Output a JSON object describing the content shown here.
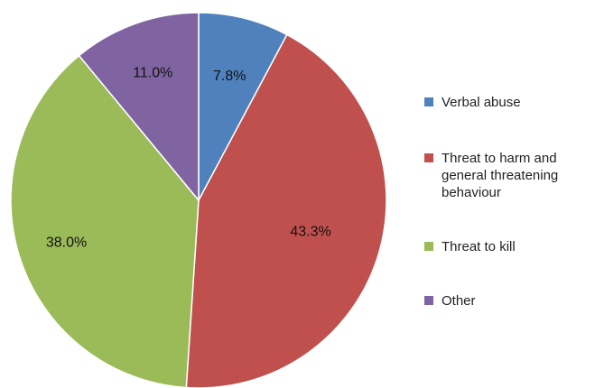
{
  "chart_data": {
    "type": "pie",
    "title": "",
    "slices": [
      {
        "label": "Verbal abuse",
        "value": 7.8,
        "display": "7.8%",
        "color": "#4f81bd"
      },
      {
        "label": "Threat to harm and general threatening behaviour",
        "value": 43.3,
        "display": "43.3%",
        "color": "#c0504d"
      },
      {
        "label": "Threat to kill",
        "value": 38.0,
        "display": "38.0%",
        "color": "#9bbb59"
      },
      {
        "label": "Other",
        "value": 11.0,
        "display": "11.0%",
        "color": "#8064a2"
      }
    ],
    "legend": {
      "position": "right",
      "items": [
        "Verbal abuse",
        "Threat to harm and general threatening behaviour",
        "Threat to kill",
        "Other"
      ]
    },
    "start_angle": "12 o'clock",
    "direction": "clockwise"
  }
}
